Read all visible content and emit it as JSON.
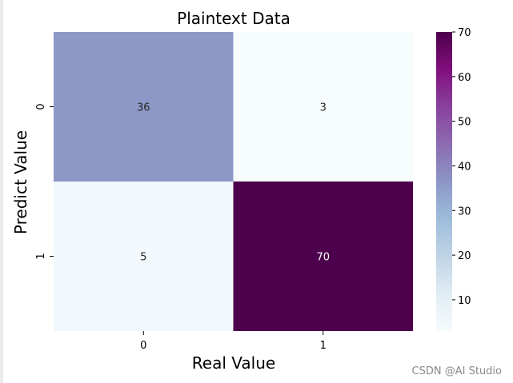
{
  "chart_data": {
    "type": "heatmap",
    "title": "Plaintext Data",
    "xlabel": "Real Value",
    "ylabel": "Predict Value",
    "x_categories": [
      "0",
      "1"
    ],
    "y_categories": [
      "0",
      "1"
    ],
    "values": [
      [
        36,
        3
      ],
      [
        5,
        70
      ]
    ],
    "annotations": [
      [
        "36",
        "3"
      ],
      [
        "5",
        "70"
      ]
    ],
    "colorbar": {
      "range": [
        3,
        70
      ],
      "ticks": [
        10,
        20,
        30,
        40,
        50,
        60,
        70
      ],
      "tick_labels": [
        "10",
        "20",
        "30",
        "40",
        "50",
        "60",
        "70"
      ],
      "colormap": "BuPu",
      "colormap_stops": [
        "#f7fcfd",
        "#e0ecf4",
        "#bfd3e6",
        "#9ebcda",
        "#8c96c6",
        "#8c6bb1",
        "#88419d",
        "#810f7c",
        "#4d004b"
      ]
    }
  },
  "watermark": "CSDN @AI Studio"
}
